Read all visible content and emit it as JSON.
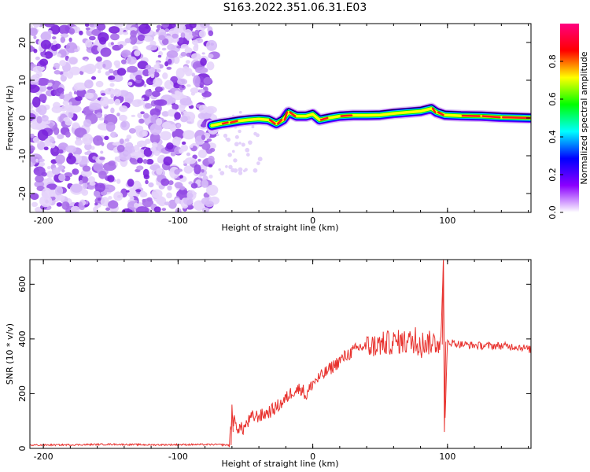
{
  "title": "S163.2022.351.06.31.E03",
  "chart_data": [
    {
      "type": "heatmap",
      "xlabel": "Height of straight line (km)",
      "ylabel": "Frequency (Hz)",
      "xlim": [
        -210,
        162
      ],
      "ylim": [
        -25,
        25
      ],
      "xticks": [
        -200,
        -100,
        0,
        100
      ],
      "yticks": [
        -20,
        -10,
        0,
        10,
        20
      ],
      "grid": false,
      "noise_region": {
        "x_start": -210,
        "x_end": -73
      },
      "ridge": [
        {
          "x": -75,
          "y": -2.0
        },
        {
          "x": -68,
          "y": -1.5
        },
        {
          "x": -62,
          "y": -1.2
        },
        {
          "x": -55,
          "y": -0.8
        },
        {
          "x": -48,
          "y": -0.5
        },
        {
          "x": -40,
          "y": -0.3
        },
        {
          "x": -33,
          "y": -0.5
        },
        {
          "x": -27,
          "y": -1.5
        },
        {
          "x": -22,
          "y": -0.5
        },
        {
          "x": -18,
          "y": 1.5
        },
        {
          "x": -12,
          "y": 0.5
        },
        {
          "x": -5,
          "y": 0.5
        },
        {
          "x": 0,
          "y": 1.0
        },
        {
          "x": 5,
          "y": -0.5
        },
        {
          "x": 12,
          "y": 0.0
        },
        {
          "x": 20,
          "y": 0.5
        },
        {
          "x": 30,
          "y": 0.7
        },
        {
          "x": 40,
          "y": 0.7
        },
        {
          "x": 50,
          "y": 0.8
        },
        {
          "x": 60,
          "y": 1.2
        },
        {
          "x": 70,
          "y": 1.5
        },
        {
          "x": 80,
          "y": 1.8
        },
        {
          "x": 88,
          "y": 2.5
        },
        {
          "x": 92,
          "y": 1.5
        },
        {
          "x": 98,
          "y": 0.8
        },
        {
          "x": 110,
          "y": 0.6
        },
        {
          "x": 125,
          "y": 0.5
        },
        {
          "x": 140,
          "y": 0.2
        },
        {
          "x": 162,
          "y": 0.0
        }
      ],
      "colorbar": {
        "label": "Normalized spectral amplitude",
        "range": [
          0,
          1
        ],
        "ticks": [
          0.0,
          0.2,
          0.4,
          0.6,
          0.8
        ],
        "tick_labels": [
          "0.0",
          "0.2",
          "0.4",
          "0.6",
          "0.8"
        ],
        "stops": [
          "#ffffff",
          "#8b00ff",
          "#0000ff",
          "#00ffff",
          "#00ff00",
          "#ffff00",
          "#ff0000",
          "#ff0080"
        ]
      }
    },
    {
      "type": "line",
      "xlabel": "Height of straight line (km)",
      "ylabel": "SNR (10 * v/v)",
      "xlim": [
        -210,
        162
      ],
      "ylim": [
        0,
        690
      ],
      "xticks": [
        -200,
        -100,
        0,
        100
      ],
      "yticks": [
        0,
        200,
        400,
        600
      ],
      "grid": false,
      "color": "#e8322e",
      "series": [
        {
          "values": [
            {
              "x": -210,
              "y": 12
            },
            {
              "x": -180,
              "y": 13
            },
            {
              "x": -150,
              "y": 15
            },
            {
              "x": -120,
              "y": 13
            },
            {
              "x": -90,
              "y": 14
            },
            {
              "x": -70,
              "y": 14
            },
            {
              "x": -62,
              "y": 12
            },
            {
              "x": -60,
              "y": 120
            },
            {
              "x": -57,
              "y": 80
            },
            {
              "x": -52,
              "y": 70
            },
            {
              "x": -45,
              "y": 115
            },
            {
              "x": -38,
              "y": 120
            },
            {
              "x": -30,
              "y": 140
            },
            {
              "x": -22,
              "y": 170
            },
            {
              "x": -15,
              "y": 210
            },
            {
              "x": -8,
              "y": 220
            },
            {
              "x": -5,
              "y": 190
            },
            {
              "x": 0,
              "y": 240
            },
            {
              "x": 8,
              "y": 270
            },
            {
              "x": 15,
              "y": 300
            },
            {
              "x": 25,
              "y": 340
            },
            {
              "x": 35,
              "y": 370
            },
            {
              "x": 45,
              "y": 375
            },
            {
              "x": 55,
              "y": 385
            },
            {
              "x": 65,
              "y": 390
            },
            {
              "x": 75,
              "y": 390
            },
            {
              "x": 85,
              "y": 385
            },
            {
              "x": 95,
              "y": 390
            },
            {
              "x": 97,
              "y": 690
            },
            {
              "x": 98,
              "y": 60
            },
            {
              "x": 100,
              "y": 390
            },
            {
              "x": 110,
              "y": 380
            },
            {
              "x": 125,
              "y": 375
            },
            {
              "x": 140,
              "y": 375
            },
            {
              "x": 155,
              "y": 370
            },
            {
              "x": 162,
              "y": 360
            }
          ]
        }
      ]
    }
  ]
}
